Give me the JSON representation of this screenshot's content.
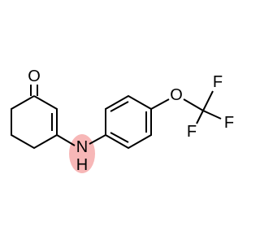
{
  "atoms": [
    {
      "label": "O"
    },
    {
      "label": "N"
    },
    {
      "label": "H"
    },
    {
      "label": "O"
    },
    {
      "label": "F"
    },
    {
      "label": "F"
    },
    {
      "label": "F"
    }
  ]
}
